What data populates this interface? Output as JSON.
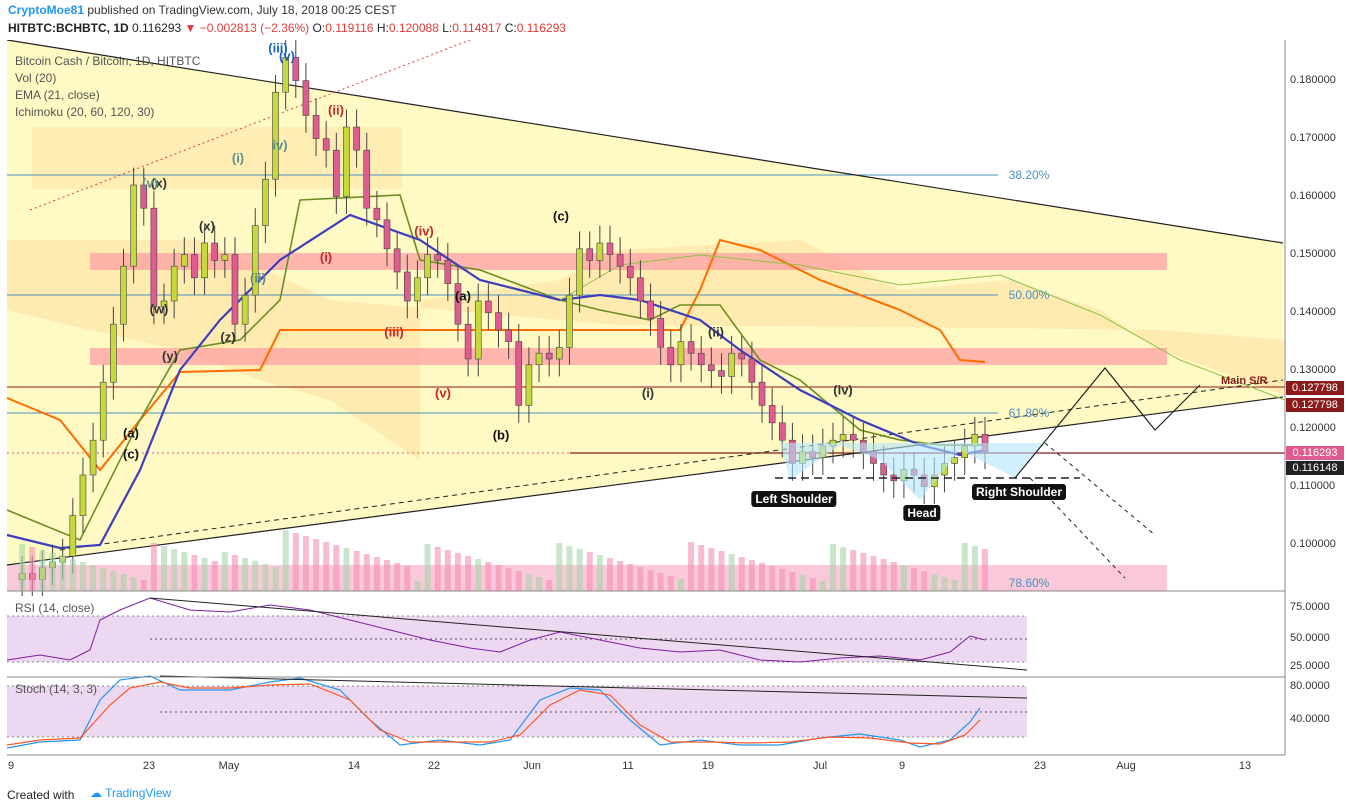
{
  "header": {
    "author": "CryptoMoe81",
    "published": "published on TradingView.com, July 18, 2018 00:25 CEST",
    "symbol": "HITBTC:BCHBTC, 1D",
    "last": "0.116293",
    "change": "−0.002813 (−2.36%)",
    "o_label": "O:",
    "o": "0.119116",
    "h_label": "H:",
    "h": "0.120088",
    "l_label": "L:",
    "l": "0.114917",
    "c_label": "C:",
    "c": "0.116293"
  },
  "legend": {
    "title": "Bitcoin Cash / Bitcoin, 1D, HITBTC",
    "vol": "Vol (20)",
    "ema": "EMA (21, close)",
    "ichimoku": "Ichimoku (20, 60, 120, 30)",
    "rsi": "RSI (14, close)",
    "stoch": "Stoch (14, 3, 3)"
  },
  "colors": {
    "up": "#c6d93b",
    "down": "#e05b8f",
    "ema": "#3b3fbf",
    "bg_yellow": "#fff9c4",
    "zone": "#ff9aa2",
    "orange": "#ff6d00",
    "green": "#6b8e23"
  },
  "price_axis": {
    "ticks": [
      "0.180000",
      "0.170000",
      "0.160000",
      "0.150000",
      "0.140000",
      "0.130000",
      "0.120000",
      "0.110000",
      "0.100000"
    ],
    "tags": [
      {
        "label": "0.127798",
        "color": "#8b1a1a"
      },
      {
        "label": "0.127798",
        "color": "#8b1a1a"
      },
      {
        "label": "0.116293",
        "color": "#e05b8f"
      },
      {
        "label": "0.116148",
        "color": "#222222"
      }
    ]
  },
  "x_axis": [
    "9",
    "23",
    "May",
    "14",
    "22",
    "Jun",
    "11",
    "19",
    "Jul",
    "9",
    "23",
    "Aug",
    "13"
  ],
  "rsi_axis": [
    "75.0000",
    "50.0000",
    "25.0000"
  ],
  "stoch_axis": [
    "80.0000",
    "40.0000"
  ],
  "fib": [
    "38.20%",
    "50.00%",
    "61.80%",
    "78.60%"
  ],
  "waves": [
    "(iii)",
    "(v)",
    "(ii)",
    "(i)",
    "(iv)",
    "(iii)",
    "(v)",
    "(i)",
    "(c)",
    "(a)",
    "(b)",
    "(i)",
    "(ii)",
    "(iv)",
    "(x)",
    "(w)",
    "(y)",
    "(x)",
    "(z)",
    "(a)",
    "(c)",
    "(v)",
    "(ii)",
    "iv)"
  ],
  "notes": [
    "Left Shoulder",
    "Head",
    "Right Shoulder",
    "Main S/R"
  ],
  "footer": {
    "created": "Created with",
    "brand": "TradingView"
  },
  "chart_data": {
    "type": "candlestick",
    "title": "Bitcoin Cash / Bitcoin, 1D, HITBTC",
    "ylim": [
      0.092,
      0.187
    ],
    "ohlc_last": {
      "open": 0.119116,
      "high": 0.120088,
      "low": 0.114917,
      "close": 0.116293
    },
    "fib_levels": [
      {
        "label": "38.20%",
        "price": 0.1662
      },
      {
        "label": "50.00%",
        "price": 0.1448
      },
      {
        "label": "61.80%",
        "price": 0.1235
      },
      {
        "label": "78.60%",
        "price": 0.0928
      }
    ],
    "closes": [
      0.094,
      0.095,
      0.094,
      0.096,
      0.097,
      0.098,
      0.105,
      0.112,
      0.118,
      0.128,
      0.138,
      0.148,
      0.162,
      0.158,
      0.141,
      0.142,
      0.148,
      0.15,
      0.146,
      0.152,
      0.149,
      0.15,
      0.138,
      0.143,
      0.155,
      0.163,
      0.178,
      0.184,
      0.18,
      0.174,
      0.17,
      0.168,
      0.16,
      0.172,
      0.168,
      0.158,
      0.156,
      0.151,
      0.147,
      0.142,
      0.146,
      0.15,
      0.149,
      0.145,
      0.138,
      0.132,
      0.142,
      0.14,
      0.137,
      0.135,
      0.124,
      0.131,
      0.133,
      0.132,
      0.134,
      0.143,
      0.151,
      0.149,
      0.152,
      0.15,
      0.148,
      0.146,
      0.142,
      0.139,
      0.134,
      0.131,
      0.135,
      0.133,
      0.131,
      0.13,
      0.129,
      0.133,
      0.132,
      0.128,
      0.124,
      0.121,
      0.118,
      0.114,
      0.116,
      0.115,
      0.117,
      0.118,
      0.119,
      0.118,
      0.116,
      0.114,
      0.112,
      0.111,
      0.113,
      0.112,
      0.11,
      0.112,
      0.114,
      0.115,
      0.117,
      0.119,
      0.116
    ]
  }
}
